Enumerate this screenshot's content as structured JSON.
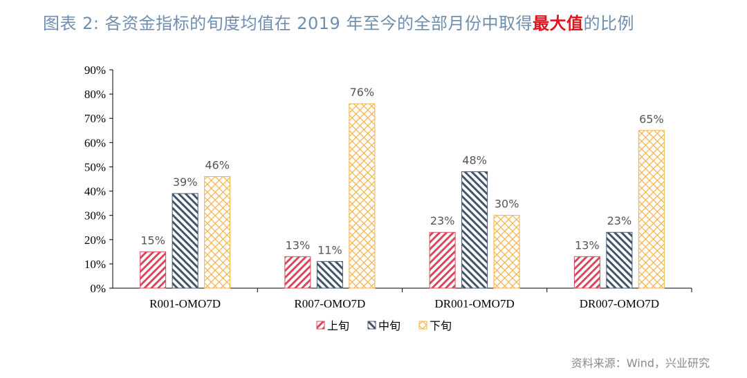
{
  "title": {
    "prefix": "图表 2:  各资金指标的旬度均值在 2019 年至今的全部月份中取得",
    "highlight": "最大值",
    "suffix": "的比例"
  },
  "source": "资料来源：Wind，兴业研究",
  "chart_data": {
    "type": "bar",
    "categories": [
      "R001-OMO7D",
      "R007-OMO7D",
      "DR001-OMO7D",
      "DR007-OMO7D"
    ],
    "series": [
      {
        "name": "上旬",
        "values": [
          15,
          13,
          23,
          13
        ],
        "color": "#d9485f",
        "pattern": "diagonal-back"
      },
      {
        "name": "中旬",
        "values": [
          39,
          11,
          48,
          23
        ],
        "color": "#44546a",
        "pattern": "diagonal-forward"
      },
      {
        "name": "下旬",
        "values": [
          46,
          76,
          30,
          65
        ],
        "color": "#f5b041",
        "pattern": "crosshatch"
      }
    ],
    "ylim": [
      0,
      90
    ],
    "yticks": [
      "0%",
      "10%",
      "20%",
      "30%",
      "40%",
      "50%",
      "60%",
      "70%",
      "80%",
      "90%"
    ],
    "grid": false,
    "legend": "bottom",
    "unit": "%"
  }
}
